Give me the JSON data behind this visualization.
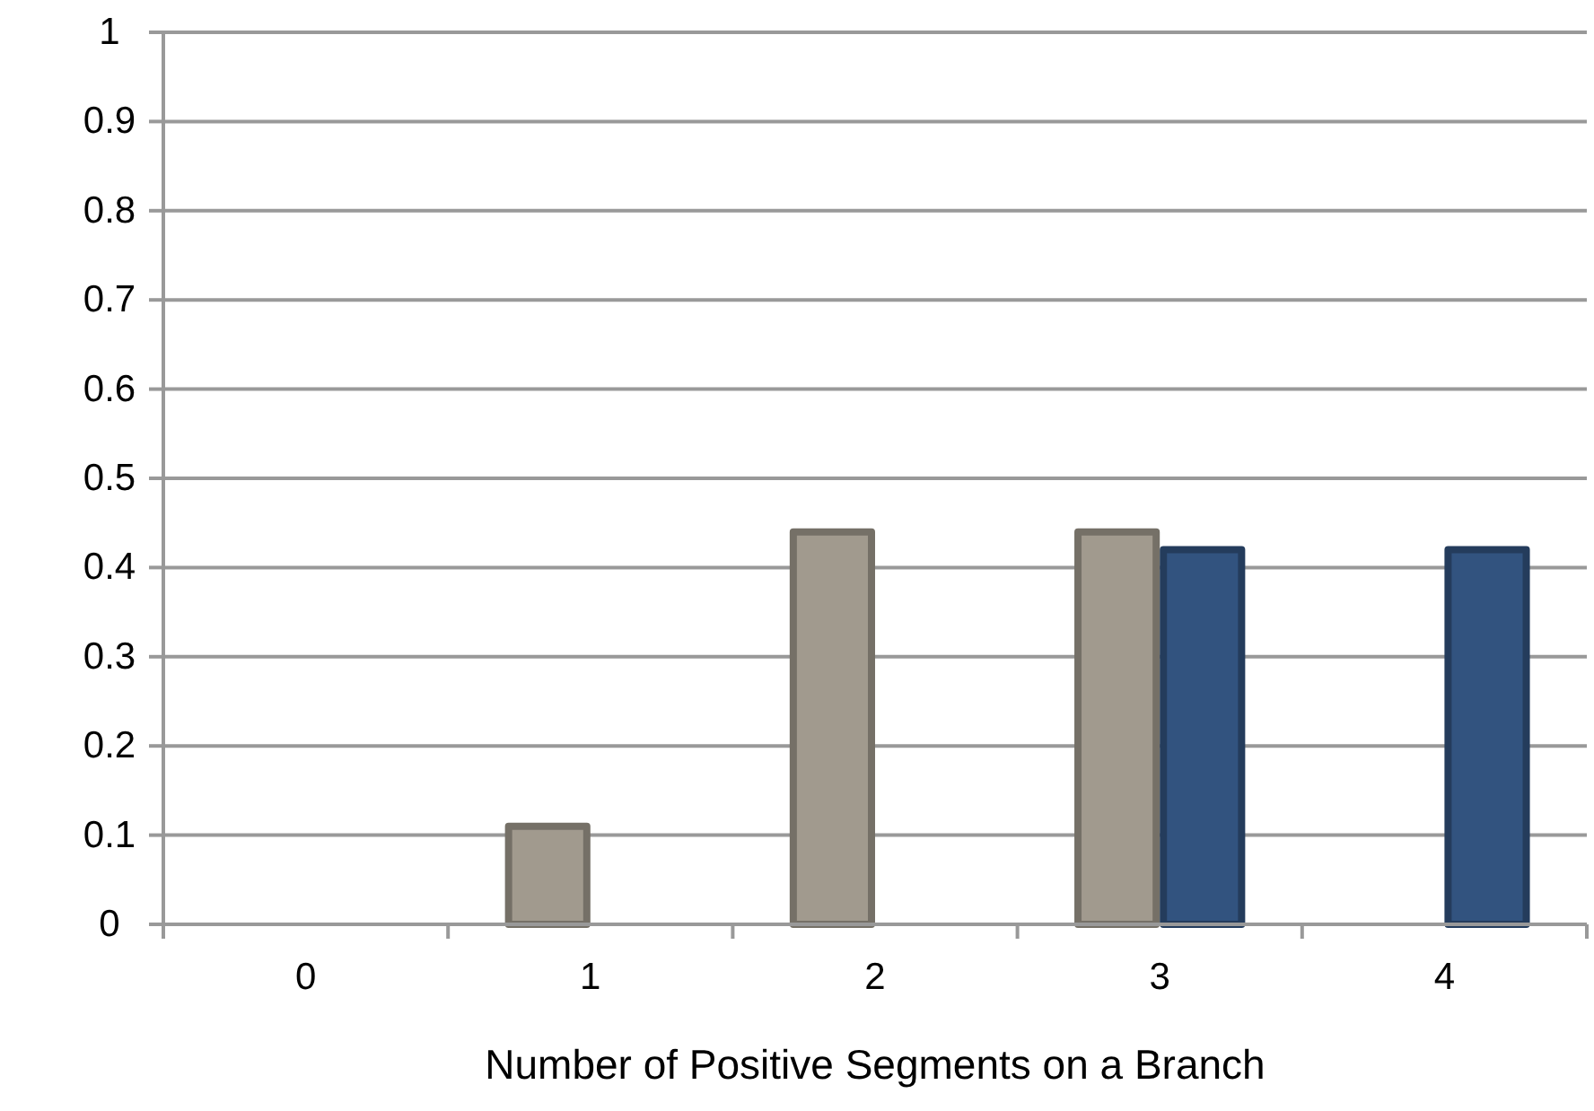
{
  "chart_data": {
    "type": "bar",
    "xlabel": "Number of Positive Segments on a Branch",
    "categories": [
      "0",
      "1",
      "2",
      "3",
      "4"
    ],
    "series": [
      {
        "color": "#a19a8e",
        "values": [
          0,
          0.11,
          0.44,
          0.44,
          0
        ]
      },
      {
        "color": "#32537f",
        "values": [
          0,
          0,
          0,
          0.42,
          0.42
        ]
      }
    ],
    "ylim": [
      0,
      1
    ],
    "yticks": [
      0,
      {
        "value": 0.1,
        "label": "0.1"
      },
      {
        "value": 0.2,
        "label": "0.2"
      },
      {
        "value": 0.3,
        "label": "0.3"
      },
      {
        "value": 0.4,
        "label": "0.4"
      },
      {
        "value": 0.5,
        "label": "0.5"
      },
      {
        "value": 0.6,
        "label": "0.6"
      },
      {
        "value": 0.7,
        "label": "0.7"
      },
      {
        "value": 0.8,
        "label": "0.8"
      },
      {
        "value": 0.9,
        "label": "0.9"
      },
      1
    ],
    "grid": "y"
  }
}
